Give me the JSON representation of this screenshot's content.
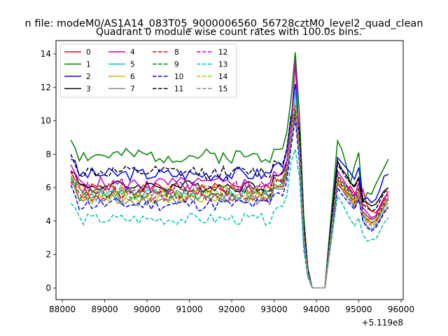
{
  "figure": {
    "suptitle": "n file: modeM0/AS1A14_083T05_9000006560_56728cztM0_level2_quad_clean",
    "title": "Quadrant 0 module wise count rates with 100.0s bins.",
    "x_offset_label": "+5.119e8"
  },
  "chart_data": {
    "type": "line",
    "title": "Quadrant 0 module wise count rates with 100.0s bins.",
    "xlabel": "",
    "ylabel": "",
    "x_offset": 511900000,
    "xlim": [
      87850,
      96050
    ],
    "ylim": [
      -0.7,
      14.8
    ],
    "xticks": [
      88000,
      89000,
      90000,
      91000,
      92000,
      93000,
      94000,
      95000,
      96000
    ],
    "xtick_labels": [
      "88000",
      "89000",
      "90000",
      "91000",
      "92000",
      "93000",
      "94000",
      "95000",
      "96000"
    ],
    "yticks": [
      0,
      2,
      4,
      6,
      8,
      10,
      12,
      14
    ],
    "ytick_labels": [
      "0",
      "2",
      "4",
      "6",
      "8",
      "10",
      "12",
      "14"
    ],
    "grid": false,
    "legend_placement": "top-left",
    "legend_columns": 4,
    "x_segments": [
      {
        "start": 88200,
        "end": 93900,
        "step": 100
      },
      {
        "start": 94500,
        "end": 95700,
        "step": 100
      }
    ],
    "series": [
      {
        "name": "0",
        "color": "#ff0000",
        "dash": "solid",
        "base": 5.9,
        "amp": 0.4,
        "seed": 1,
        "peak": 13.5,
        "post": [
          6.3,
          6.0,
          5.6,
          6.1,
          5.7,
          5.2,
          5.9,
          4.9,
          4.6,
          4.5,
          4.8,
          5.3,
          5.8
        ]
      },
      {
        "name": "1",
        "color": "#008000",
        "dash": "solid",
        "base": 7.9,
        "amp": 0.45,
        "seed": 2,
        "peak": 14.1,
        "post": [
          8.8,
          8.3,
          7.4,
          6.2,
          7.3,
          8.1,
          5.1,
          5.7,
          5.6,
          6.2,
          6.7,
          7.2,
          7.7
        ]
      },
      {
        "name": "2",
        "color": "#0000ff",
        "dash": "solid",
        "base": 6.8,
        "amp": 0.4,
        "seed": 3,
        "peak": 12.2,
        "post": [
          7.8,
          7.5,
          7.2,
          6.9,
          6.5,
          7.2,
          5.3,
          5.4,
          5.1,
          5.3,
          5.9,
          6.7,
          6.8
        ]
      },
      {
        "name": "3",
        "color": "#000000",
        "dash": "solid",
        "base": 6.1,
        "amp": 0.35,
        "seed": 4,
        "peak": 10.4,
        "post": [
          7.6,
          7.1,
          6.8,
          6.3,
          6.1,
          6.6,
          5.2,
          5.1,
          4.9,
          5.0,
          5.4,
          5.8,
          6.0
        ]
      },
      {
        "name": "4",
        "color": "#bf00bf",
        "dash": "solid",
        "base": 6.2,
        "amp": 0.45,
        "seed": 5,
        "peak": 13.6,
        "post": [
          7.0,
          6.6,
          6.2,
          5.9,
          5.5,
          6.3,
          4.8,
          4.5,
          4.2,
          4.3,
          4.9,
          5.4,
          5.6
        ]
      },
      {
        "name": "5",
        "color": "#00bfbf",
        "dash": "solid",
        "base": 5.6,
        "amp": 0.4,
        "seed": 6,
        "peak": 11.9,
        "post": [
          6.6,
          6.2,
          5.9,
          5.5,
          5.2,
          5.9,
          4.3,
          4.1,
          3.9,
          4.0,
          4.4,
          4.9,
          5.3
        ]
      },
      {
        "name": "6",
        "color": "#bfbf00",
        "dash": "solid",
        "base": 5.4,
        "amp": 0.4,
        "seed": 7,
        "peak": 11.0,
        "post": [
          6.4,
          6.0,
          5.7,
          5.4,
          5.0,
          5.6,
          4.2,
          4.0,
          3.8,
          3.9,
          4.3,
          4.8,
          5.1
        ]
      },
      {
        "name": "7",
        "color": "#808080",
        "dash": "solid",
        "base": 5.3,
        "amp": 0.4,
        "seed": 8,
        "peak": 10.8,
        "post": [
          6.2,
          5.9,
          5.5,
          5.2,
          4.8,
          5.4,
          4.0,
          3.7,
          3.5,
          3.7,
          4.1,
          4.6,
          4.9
        ]
      },
      {
        "name": "8",
        "color": "#ff0000",
        "dash": "dashed",
        "base": 5.5,
        "amp": 0.4,
        "seed": 9,
        "peak": 10.8,
        "post": [
          6.5,
          6.1,
          5.8,
          5.5,
          5.1,
          5.7,
          4.4,
          4.1,
          3.9,
          4.0,
          4.5,
          5.0,
          5.3
        ]
      },
      {
        "name": "9",
        "color": "#008000",
        "dash": "dashed",
        "base": 5.7,
        "amp": 0.4,
        "seed": 10,
        "peak": 10.6,
        "post": [
          6.7,
          6.3,
          6.0,
          5.7,
          5.3,
          5.9,
          4.5,
          4.3,
          4.1,
          4.2,
          4.6,
          5.1,
          5.4
        ]
      },
      {
        "name": "10",
        "color": "#0000ff",
        "dash": "dashed",
        "base": 5.0,
        "amp": 0.4,
        "seed": 11,
        "peak": 10.1,
        "post": [
          6.0,
          5.6,
          5.3,
          5.0,
          4.7,
          5.3,
          4.0,
          3.6,
          3.4,
          3.6,
          4.0,
          4.5,
          4.8
        ]
      },
      {
        "name": "11",
        "color": "#000000",
        "dash": "dashed",
        "base": 6.9,
        "amp": 0.4,
        "seed": 12,
        "peak": 10.1,
        "post": [
          7.4,
          7.0,
          6.6,
          6.3,
          6.0,
          6.5,
          5.0,
          4.8,
          4.6,
          4.7,
          5.2,
          5.7,
          5.9
        ]
      },
      {
        "name": "12",
        "color": "#bf00bf",
        "dash": "dashed",
        "base": 6.0,
        "amp": 0.4,
        "seed": 13,
        "peak": 10.9,
        "post": [
          6.8,
          6.4,
          6.1,
          5.8,
          5.4,
          6.0,
          4.6,
          4.3,
          4.1,
          4.2,
          4.7,
          5.2,
          5.5
        ]
      },
      {
        "name": "13",
        "color": "#00bfbf",
        "dash": "dashed",
        "base": 4.1,
        "amp": 0.35,
        "seed": 14,
        "peak": 8.3,
        "post": [
          5.5,
          5.1,
          4.6,
          4.1,
          3.7,
          4.2,
          3.2,
          2.8,
          2.9,
          2.9,
          3.4,
          3.9,
          4.2
        ]
      },
      {
        "name": "14",
        "color": "#bfbf00",
        "dash": "dashed",
        "base": 5.8,
        "amp": 0.4,
        "seed": 15,
        "peak": 11.1,
        "post": [
          6.6,
          6.2,
          5.9,
          5.6,
          5.2,
          5.8,
          4.4,
          4.2,
          4.0,
          4.1,
          4.6,
          5.1,
          5.4
        ]
      },
      {
        "name": "15",
        "color": "#808080",
        "dash": "dashed",
        "base": 5.5,
        "amp": 0.4,
        "seed": 16,
        "peak": 10.3,
        "post": [
          6.3,
          5.9,
          5.6,
          5.3,
          4.9,
          5.5,
          4.2,
          3.9,
          3.7,
          3.8,
          4.3,
          4.8,
          5.1
        ]
      }
    ]
  }
}
